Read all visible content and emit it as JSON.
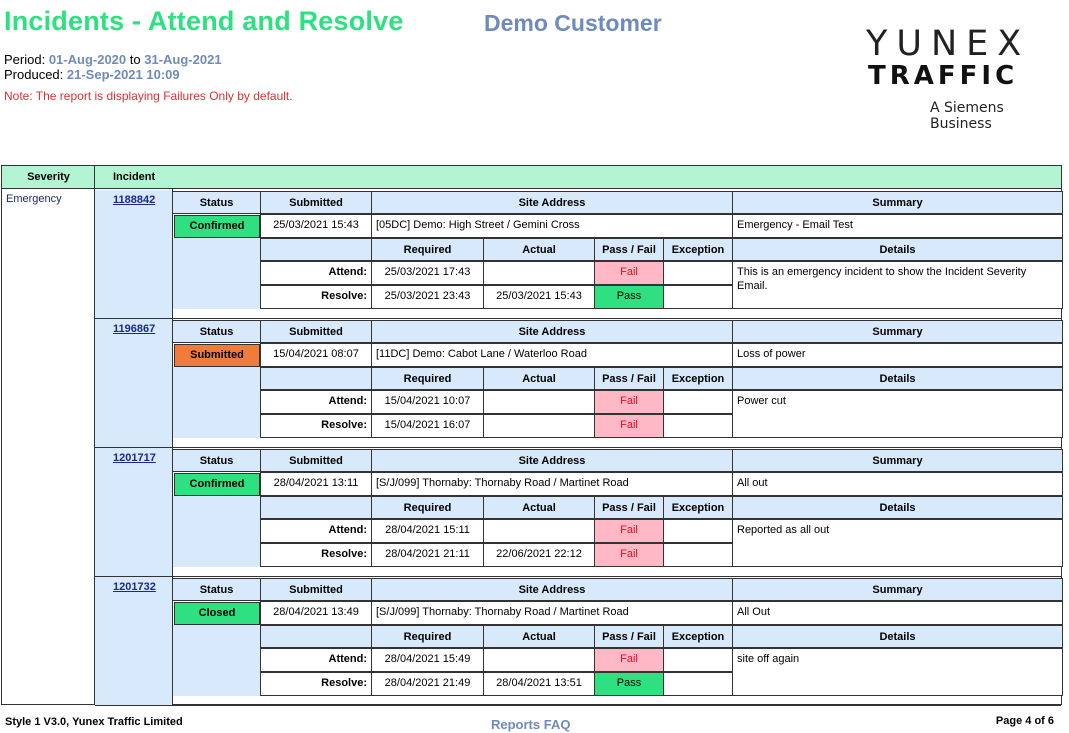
{
  "header": {
    "title": "Incidents - Attend and Resolve",
    "customer": "Demo Customer",
    "period_label": "Period:",
    "period_from": "01-Aug-2020",
    "period_to_word": "to",
    "period_to": "31-Aug-2021",
    "produced_label": "Produced:",
    "produced": "21-Sep-2021 10:09",
    "note": "Note: The report is displaying Failures Only by default."
  },
  "logo": {
    "line1": "YUNEX",
    "line2": "TRAFFIC",
    "line3": "A Siemens Business"
  },
  "table": {
    "col_severity": "Severity",
    "col_incident": "Incident",
    "severity": "Emergency",
    "sub_headers": {
      "status": "Status",
      "submitted": "Submitted",
      "site_address": "Site Address",
      "summary": "Summary",
      "required": "Required",
      "actual": "Actual",
      "pass_fail": "Pass / Fail",
      "exception": "Exception",
      "details": "Details"
    },
    "row_labels": {
      "attend": "Attend:",
      "resolve": "Resolve:"
    },
    "incidents": [
      {
        "number": "1188842",
        "status": "Confirmed",
        "submitted": "25/03/2021 15:43",
        "site_address": "[05DC] Demo: High Street / Gemini Cross",
        "summary": "Emergency - Email Test",
        "attend_required": "25/03/2021 17:43",
        "attend_actual": "",
        "attend_result": "Fail",
        "resolve_required": "25/03/2021 23:43",
        "resolve_actual": "25/03/2021 15:43",
        "resolve_result": "Pass",
        "details": "This is an emergency incident to show the Incident Severity Email."
      },
      {
        "number": "1196867",
        "status": "Submitted",
        "submitted": "15/04/2021 08:07",
        "site_address": "[11DC] Demo: Cabot Lane / Waterloo Road",
        "summary": "Loss of power",
        "attend_required": "15/04/2021 10:07",
        "attend_actual": "",
        "attend_result": "Fail",
        "resolve_required": "15/04/2021 16:07",
        "resolve_actual": "",
        "resolve_result": "Fail",
        "details": "Power cut"
      },
      {
        "number": "1201717",
        "status": "Confirmed",
        "submitted": "28/04/2021 13:11",
        "site_address": "[S/J/099] Thornaby: Thornaby Road / Martinet Road",
        "summary": "All out",
        "attend_required": "28/04/2021 15:11",
        "attend_actual": "",
        "attend_result": "Fail",
        "resolve_required": "28/04/2021 21:11",
        "resolve_actual": "22/06/2021 22:12",
        "resolve_result": "Fail",
        "details": "Reported as all out"
      },
      {
        "number": "1201732",
        "status": "Closed",
        "submitted": "28/04/2021 13:49",
        "site_address": "[S/J/099] Thornaby: Thornaby Road / Martinet Road",
        "summary": "All Out",
        "attend_required": "28/04/2021 15:49",
        "attend_actual": "",
        "attend_result": "Fail",
        "resolve_required": "28/04/2021 21:49",
        "resolve_actual": "28/04/2021 13:51",
        "resolve_result": "Pass",
        "details": "site off again"
      }
    ]
  },
  "footer": {
    "style": "Style 1 V3.0, Yunex Traffic Limited",
    "faq": "Reports FAQ",
    "page": "Page 4 of 6"
  },
  "colors": {
    "title_green": "#2ee07f",
    "accent_blue": "#6f8bbd",
    "header_green": "#b3f5d3",
    "subheader_blue": "#d7e9fb",
    "fail_pink": "#ffb8c6",
    "submitted_orange": "#f07b3a"
  }
}
